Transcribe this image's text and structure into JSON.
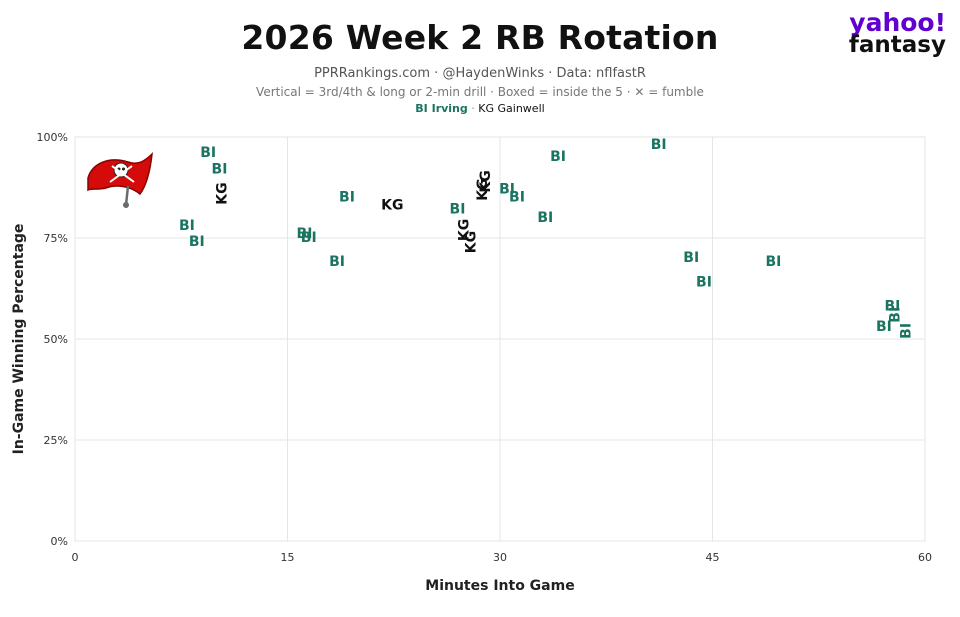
{
  "title": "2026 Week 2 RB Rotation",
  "subtitle": "PPRRankings.com · @HaydenWinks · Data: nflfastR",
  "note": "Vertical = 3rd/4th & long or 2-min drill · Boxed = inside the 5 · ✕ = fumble",
  "legend": {
    "bi": "BI Irving",
    "sep": " · ",
    "kg": "KG Gainwell"
  },
  "brand": {
    "line1": "yahoo!",
    "line2": "fantasy"
  },
  "colors": {
    "bi": "#1b7462",
    "kg": "#111111",
    "grid": "#e6e6e6",
    "logo_red": "#d50a0a"
  },
  "logo_icon": "buccaneers-flag-logo",
  "chart_data": {
    "type": "scatter",
    "xlabel": "Minutes Into Game",
    "ylabel": "In-Game Winning Percentage",
    "xlim": [
      0,
      60
    ],
    "ylim": [
      0,
      100
    ],
    "xticks": [
      "0",
      "15",
      "30",
      "45",
      "60"
    ],
    "yticks": [
      "0%",
      "25%",
      "50%",
      "75%",
      "100%"
    ],
    "grid": true,
    "series": [
      {
        "name": "BI Irving",
        "label": "BI",
        "points": [
          {
            "x": 9.4,
            "y": 96,
            "vertical": false
          },
          {
            "x": 10.2,
            "y": 92,
            "vertical": false
          },
          {
            "x": 7.9,
            "y": 78,
            "vertical": false
          },
          {
            "x": 8.6,
            "y": 74,
            "vertical": false
          },
          {
            "x": 16.2,
            "y": 76,
            "vertical": false
          },
          {
            "x": 16.5,
            "y": 75,
            "vertical": false
          },
          {
            "x": 19.2,
            "y": 85,
            "vertical": false
          },
          {
            "x": 18.5,
            "y": 69,
            "vertical": false
          },
          {
            "x": 27.0,
            "y": 82,
            "vertical": false
          },
          {
            "x": 30.5,
            "y": 87,
            "vertical": false
          },
          {
            "x": 31.2,
            "y": 85,
            "vertical": false
          },
          {
            "x": 33.2,
            "y": 80,
            "vertical": false
          },
          {
            "x": 34.1,
            "y": 95,
            "vertical": false
          },
          {
            "x": 41.2,
            "y": 98,
            "vertical": false
          },
          {
            "x": 43.5,
            "y": 70,
            "vertical": false
          },
          {
            "x": 44.4,
            "y": 64,
            "vertical": false
          },
          {
            "x": 49.3,
            "y": 69,
            "vertical": false
          },
          {
            "x": 57.1,
            "y": 53,
            "vertical": false
          },
          {
            "x": 57.7,
            "y": 58,
            "vertical": false
          },
          {
            "x": 57.9,
            "y": 56,
            "vertical": true
          },
          {
            "x": 58.7,
            "y": 52,
            "vertical": true
          }
        ]
      },
      {
        "name": "KG Gainwell",
        "label": "KG",
        "points": [
          {
            "x": 10.4,
            "y": 86,
            "vertical": true
          },
          {
            "x": 22.4,
            "y": 83,
            "vertical": false
          },
          {
            "x": 27.5,
            "y": 77,
            "vertical": true
          },
          {
            "x": 28.0,
            "y": 74,
            "vertical": true
          },
          {
            "x": 28.8,
            "y": 87,
            "vertical": true
          },
          {
            "x": 29.0,
            "y": 89,
            "vertical": true
          }
        ]
      }
    ]
  }
}
